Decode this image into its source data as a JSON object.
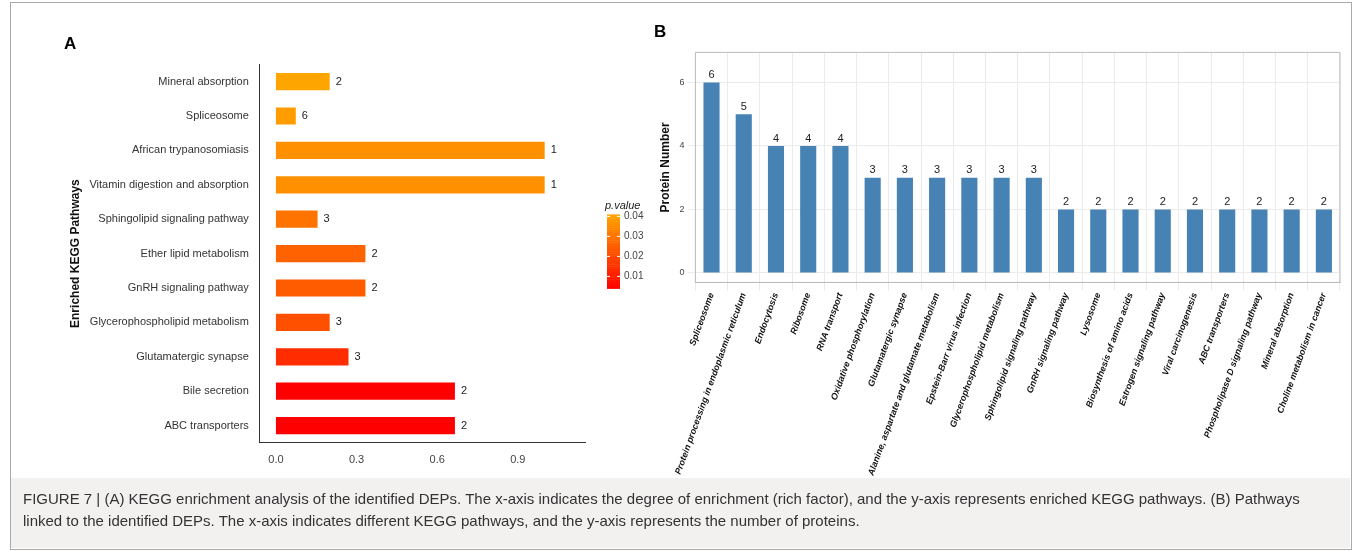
{
  "chart_data": [
    {
      "type": "bar",
      "title": "A",
      "orientation": "horizontal",
      "ylabel": "Enriched KEGG Pathways",
      "categories": [
        "Mineral absorption",
        "Spliceosome",
        "African trypanosomiasis",
        "Vitamin digestion and absorption",
        "Sphingolipid signaling pathway",
        "Ether lipid metabolism",
        "GnRH signaling pathway",
        "Glycerophospholipid metabolism",
        "Glutamatergic synapse",
        "Bile secretion",
        "ABC transporters"
      ],
      "values": [
        0.2,
        0.074,
        1.0,
        1.0,
        0.155,
        0.333,
        0.333,
        0.2,
        0.27,
        0.666,
        0.666
      ],
      "colors": [
        "#ffa500",
        "#ff9d00",
        "#ff9000",
        "#ff9000",
        "#ff7400",
        "#ff6200",
        "#ff5c00",
        "#ff5000",
        "#ff2c00",
        "#ff0000",
        "#ff0000"
      ],
      "xlim": [
        -0.06,
        1.15
      ],
      "xticks": [
        {
          "value": 0,
          "label": "0.0"
        },
        0.3,
        0.6,
        0.9
      ],
      "clabel": "p.value",
      "clim": [
        0.004,
        0.041
      ],
      "cticks": [
        0.01,
        0.02,
        0.03,
        0.04
      ],
      "grid": false,
      "legend": false,
      "annotations": [
        {
          "text": "2",
          "x": 0.2,
          "y": "Mineral absorption"
        },
        {
          "text": "6",
          "x": 0.074,
          "y": "Spliceosome"
        },
        {
          "text": "1",
          "x": 1.0,
          "y": "African trypanosomiasis"
        },
        {
          "text": "1",
          "x": 1.0,
          "y": "Vitamin digestion and absorption"
        },
        {
          "text": "3",
          "x": 0.155,
          "y": "Sphingolipid signaling pathway"
        },
        {
          "text": "2",
          "x": 0.333,
          "y": "Ether lipid metabolism"
        },
        {
          "text": "2",
          "x": 0.333,
          "y": "GnRH signaling pathway"
        },
        {
          "text": "3",
          "x": 0.2,
          "y": "Glycerophospholipid metabolism"
        },
        {
          "text": "3",
          "x": 0.27,
          "y": "Glutamatergic synapse"
        },
        {
          "text": "2",
          "x": 0.666,
          "y": "Bile secretion"
        },
        {
          "text": "2",
          "x": 0.666,
          "y": "ABC transporters"
        },
        "FIGURE 7 | (A) KEGG enrichment analysis of the identified DEPs. The x-axis indicates the degree of enrichment (rich factor), and the y-axis represents enriched KEGG pathways. (B) Pathways linked to the identified DEPs. The x-axis indicates different KEGG pathways, and the y-axis represents the number of proteins."
      ]
    },
    {
      "type": "bar",
      "title": "B",
      "ylabel": "Protein Number",
      "categories": [
        "Spliceosome",
        "Protein processing in endoplasmic reticulum",
        "Endocytosis",
        "Ribosome",
        "RNA transport",
        "Oxidative phosphorylation",
        "Glutamatergic synapse",
        "Alanine, aspartate and glutamate metabolism",
        "Epstein-Barr virus infection",
        "Glycerophospholipid metabolism",
        "Sphingolipid signaling pathway",
        "GnRH signaling pathway",
        "Lysosome",
        "Biosynthesis of amino acids",
        "Estrogen signaling pathway",
        "Viral carcinogenesis",
        "ABC transporters",
        "Phospholipase D signaling pathway",
        "Mineral absorption",
        "Choline metabolism in cancer"
      ],
      "values": [
        6,
        5,
        4,
        4,
        4,
        3,
        3,
        3,
        3,
        3,
        3,
        2,
        2,
        2,
        2,
        2,
        2,
        2,
        2,
        2
      ],
      "color": "#4682b4",
      "data_labels": true,
      "ylim": [
        -0.3,
        6.95
      ],
      "yticks": [
        0,
        2,
        4,
        6
      ],
      "grid": true,
      "legend": false
    }
  ]
}
